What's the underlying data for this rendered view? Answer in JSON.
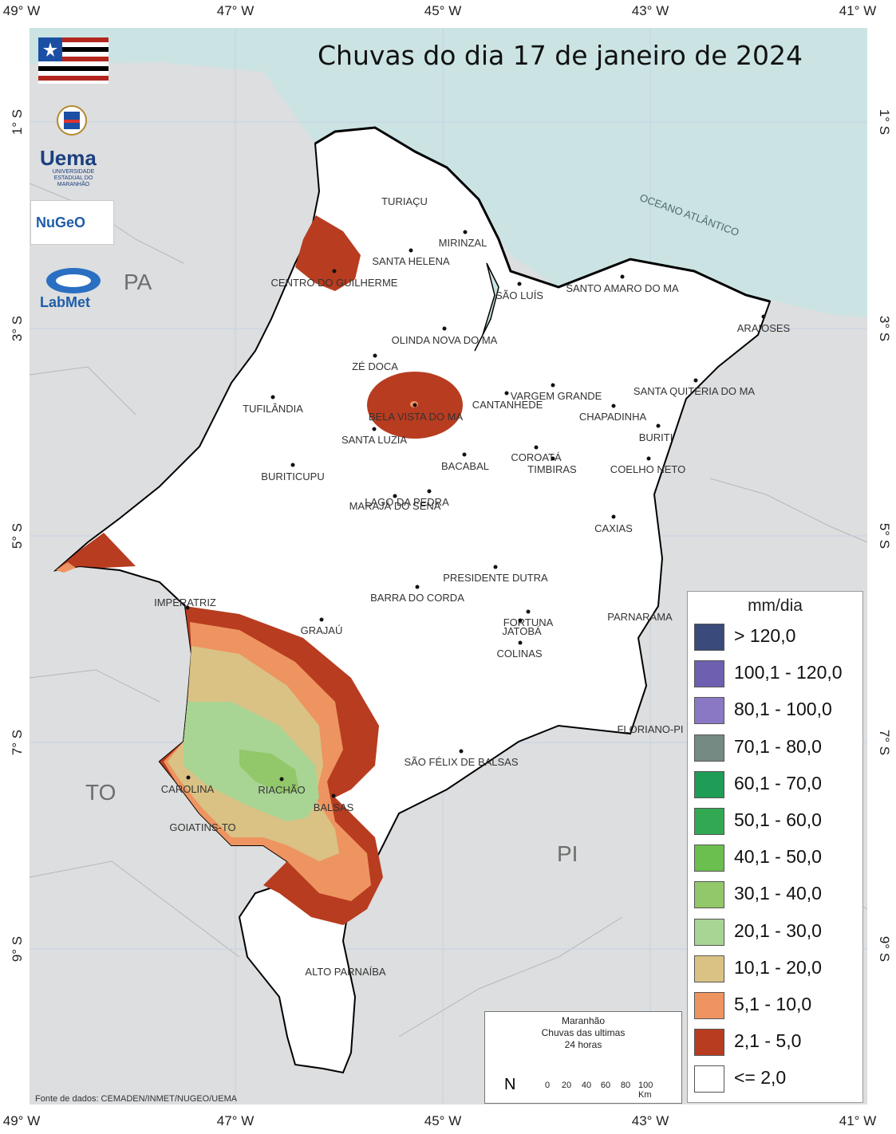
{
  "title": "Chuvas do dia 17 de janeiro de 2024",
  "axes": {
    "top_ticks": [
      "49° W",
      "47° W",
      "45° W",
      "43° W",
      "41° W"
    ],
    "bottom_ticks": [
      "49° W",
      "47° W",
      "45° W",
      "43° W",
      "41° W"
    ],
    "left_ticks": [
      "1° S",
      "3° S",
      "5° S",
      "7° S",
      "9° S"
    ],
    "right_ticks": [
      "1° S",
      "3° S",
      "5° S",
      "7° S",
      "9° S"
    ]
  },
  "region_labels": {
    "pa": "PA",
    "to": "TO",
    "pi": "PI",
    "ocean": "OCEANO ATLÂNTICO"
  },
  "logos": {
    "uema": "Uema",
    "uema_sub": "UNIVERSIDADE ESTADUAL DO MARANHÃO",
    "nugeo": "NuGeO",
    "labmet": "LabMet"
  },
  "cities": [
    "TURIAÇU",
    "MIRINZAL",
    "SANTA HELENA",
    "CENTRO DO GUILHERME",
    "SÃO LUÍS",
    "SANTO AMARO DO MA",
    "ARAIOSES",
    "OLINDA NOVA DO MA",
    "ZÉ DOCA",
    "VARGEM GRANDE",
    "SANTA QUITÉRIA DO MA",
    "CANTANHEDE",
    "CHAPADINHA",
    "TUFILÂNDIA",
    "BELA VISTA DO MA",
    "SANTA LUZIA",
    "BURITI",
    "COROATÁ",
    "TIMBIRAS",
    "BACABAL",
    "COELHO NETO",
    "BURITICUPU",
    "LAGO DA PEDRA",
    "MARAJÁ DO SENA",
    "CAXIAS",
    "PRESIDENTE DUTRA",
    "BARRA DO CORDA",
    "IMPERATRIZ",
    "GRAJAÚ",
    "FORTUNA",
    "JATOBÁ",
    "PARNARAMA",
    "COLINAS",
    "FLORIANO-PI",
    "SÃO FÉLIX DE BALSAS",
    "CAROLINA",
    "RIACHÃO",
    "BALSAS",
    "GOIATINS-TO",
    "ALTO PARNAÍBA"
  ],
  "legend": {
    "title": "mm/dia",
    "items": [
      {
        "label": "> 120,0",
        "color": "#3a4a7a"
      },
      {
        "label": "100,1 - 120,0",
        "color": "#6e5fb0"
      },
      {
        "label": "80,1 - 100,0",
        "color": "#8a78c4"
      },
      {
        "label": "70,1 - 80,0",
        "color": "#768a84"
      },
      {
        "label": "60,1 - 70,0",
        "color": "#1f9c55"
      },
      {
        "label": "50,1 - 60,0",
        "color": "#33a853"
      },
      {
        "label": "40,1 - 50,0",
        "color": "#6bbf4e"
      },
      {
        "label": "30,1 - 40,0",
        "color": "#92c76a"
      },
      {
        "label": "20,1 - 30,0",
        "color": "#a8d494"
      },
      {
        "label": "10,1 - 20,0",
        "color": "#d9c284"
      },
      {
        "label": "5,1 - 10,0",
        "color": "#ee9460"
      },
      {
        "label": "2,1 - 5,0",
        "color": "#b83c20"
      },
      {
        "label": "<= 2,0",
        "color": "#ffffff"
      }
    ]
  },
  "infobox": {
    "line1": "Maranhão",
    "line2": "Chuvas das ultimas",
    "line3": "24 horas",
    "north": "N",
    "scale_labels": [
      "0",
      "20",
      "40",
      "60",
      "80",
      "100 Km"
    ]
  },
  "source": "Fonte de dados: CEMADEN/INMET/NUGEO/UEMA"
}
